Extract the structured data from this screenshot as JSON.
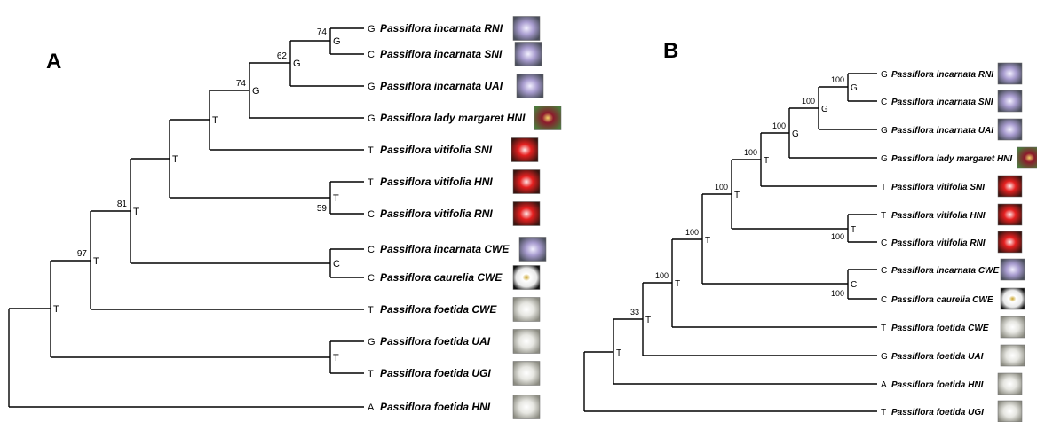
{
  "panels": [
    {
      "letter": "A",
      "taxa": [
        {
          "base": "G",
          "name": "Passiflora incarnata RNI",
          "photo": "purple-flower"
        },
        {
          "base": "C",
          "name": "Passiflora incarnata SNI",
          "photo": "purple-flower"
        },
        {
          "base": "G",
          "name": "Passiflora incarnata UAI",
          "photo": "purple-flower"
        },
        {
          "base": "G",
          "name": "Passiflora lady margaret HNI",
          "photo": "red-flower"
        },
        {
          "base": "T",
          "name": "Passiflora vitifolia SNI",
          "photo": "scarlet-flower"
        },
        {
          "base": "T",
          "name": "Passiflora vitifolia HNI",
          "photo": "scarlet-flower"
        },
        {
          "base": "C",
          "name": "Passiflora vitifolia RNI",
          "photo": "scarlet-flower"
        },
        {
          "base": "C",
          "name": "Passiflora incarnata CWE",
          "photo": "purple-flower"
        },
        {
          "base": "C",
          "name": "Passiflora caurelia CWE",
          "photo": "white-flower-dark"
        },
        {
          "base": "T",
          "name": "Passiflora foetida CWE",
          "photo": "white-flower"
        },
        {
          "base": "G",
          "name": "Passiflora foetida UAI",
          "photo": "white-flower"
        },
        {
          "base": "T",
          "name": "Passiflora foetida UGI",
          "photo": "white-flower"
        },
        {
          "base": "A",
          "name": "Passiflora foetida HNI",
          "photo": "white-flower"
        }
      ],
      "nodes": [
        {
          "base": "G",
          "support": "74"
        },
        {
          "base": "G",
          "support": "62"
        },
        {
          "base": "G",
          "support": "74"
        },
        {
          "base": "T",
          "support": ""
        },
        {
          "base": "T",
          "support": ""
        },
        {
          "base": "T",
          "support": "59"
        },
        {
          "base": "T",
          "support": "81"
        },
        {
          "base": "C",
          "support": ""
        },
        {
          "base": "T",
          "support": "97"
        },
        {
          "base": "T",
          "support": ""
        },
        {
          "base": "T",
          "support": ""
        }
      ]
    },
    {
      "letter": "B",
      "taxa": [
        {
          "base": "G",
          "name": "Passiflora incarnata RNI",
          "photo": "purple-flower"
        },
        {
          "base": "C",
          "name": "Passiflora incarnata SNI",
          "photo": "purple-flower"
        },
        {
          "base": "G",
          "name": "Passiflora incarnata UAI",
          "photo": "purple-flower"
        },
        {
          "base": "G",
          "name": "Passiflora lady margaret HNI",
          "photo": "red-flower"
        },
        {
          "base": "T",
          "name": "Passiflora vitifolia SNI",
          "photo": "scarlet-flower"
        },
        {
          "base": "T",
          "name": "Passiflora vitifolia HNI",
          "photo": "scarlet-flower"
        },
        {
          "base": "C",
          "name": "Passiflora vitifolia RNI",
          "photo": "scarlet-flower"
        },
        {
          "base": "C",
          "name": "Passiflora incarnata CWE",
          "photo": "purple-flower"
        },
        {
          "base": "C",
          "name": "Passiflora caurelia CWE",
          "photo": "white-flower-dark"
        },
        {
          "base": "T",
          "name": "Passiflora foetida CWE",
          "photo": "white-flower"
        },
        {
          "base": "G",
          "name": "Passiflora foetida UAI",
          "photo": "white-flower"
        },
        {
          "base": "A",
          "name": "Passiflora foetida HNI",
          "photo": "white-flower"
        },
        {
          "base": "T",
          "name": "Passiflora foetida UGI",
          "photo": "white-flower"
        }
      ],
      "nodes": [
        {
          "base": "G",
          "support": "100"
        },
        {
          "base": "G",
          "support": "100"
        },
        {
          "base": "G",
          "support": "100"
        },
        {
          "base": "T",
          "support": "100"
        },
        {
          "base": "T",
          "support": "100"
        },
        {
          "base": "T",
          "support": "100"
        },
        {
          "base": "C",
          "support": "100"
        },
        {
          "base": "T",
          "support": "100"
        },
        {
          "base": "T",
          "support": "100"
        },
        {
          "base": "T",
          "support": "33"
        },
        {
          "base": "T",
          "support": ""
        }
      ]
    }
  ]
}
